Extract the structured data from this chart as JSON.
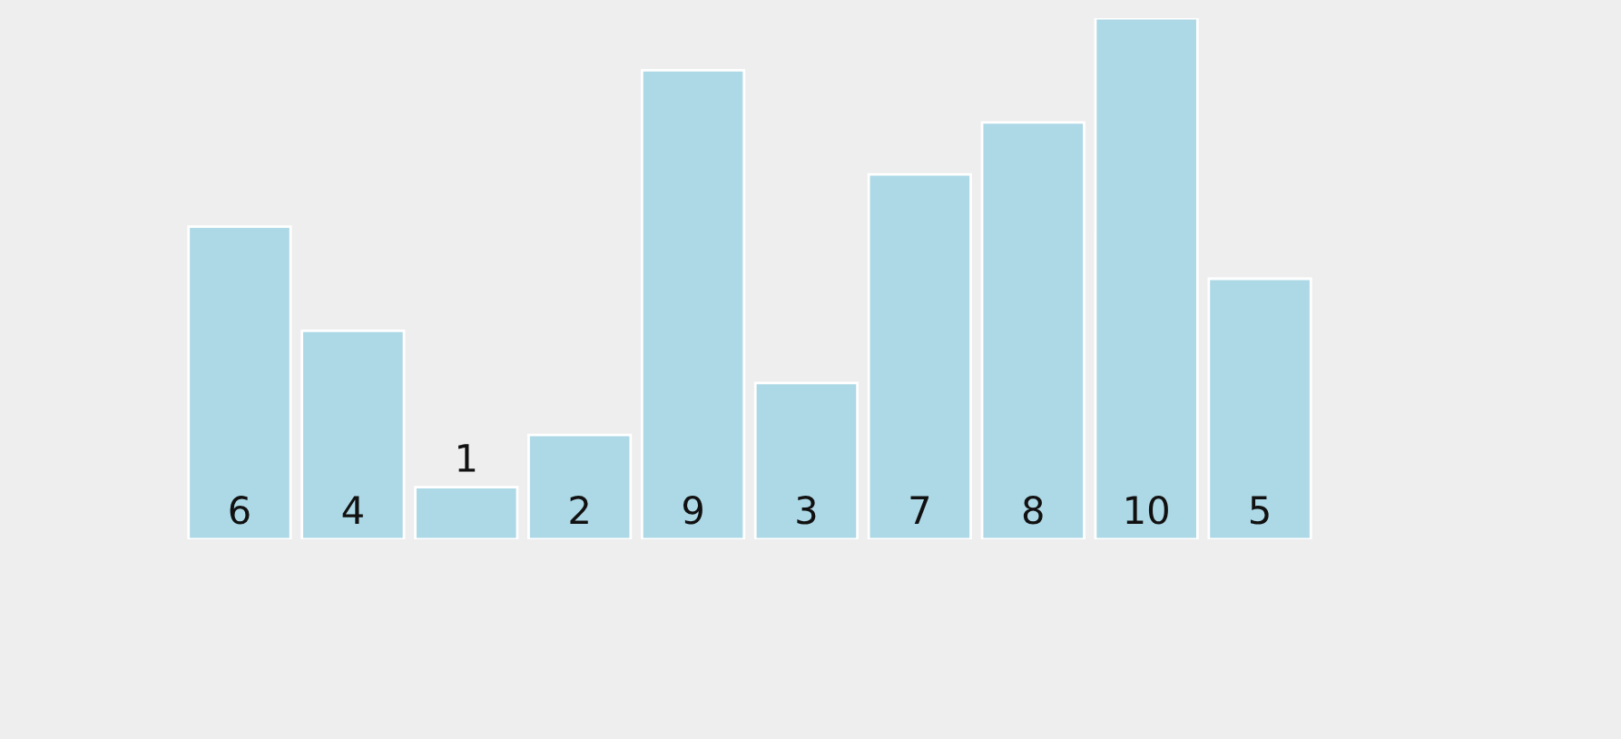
{
  "chart_data": {
    "type": "bar",
    "categories": [
      null,
      null,
      null,
      null,
      null,
      null,
      null,
      null,
      null,
      null
    ],
    "values": [
      6,
      4,
      1,
      2,
      9,
      3,
      7,
      8,
      10,
      5
    ],
    "color": "#add8e6",
    "data_labels": true,
    "grid": false,
    "legend": false
  }
}
